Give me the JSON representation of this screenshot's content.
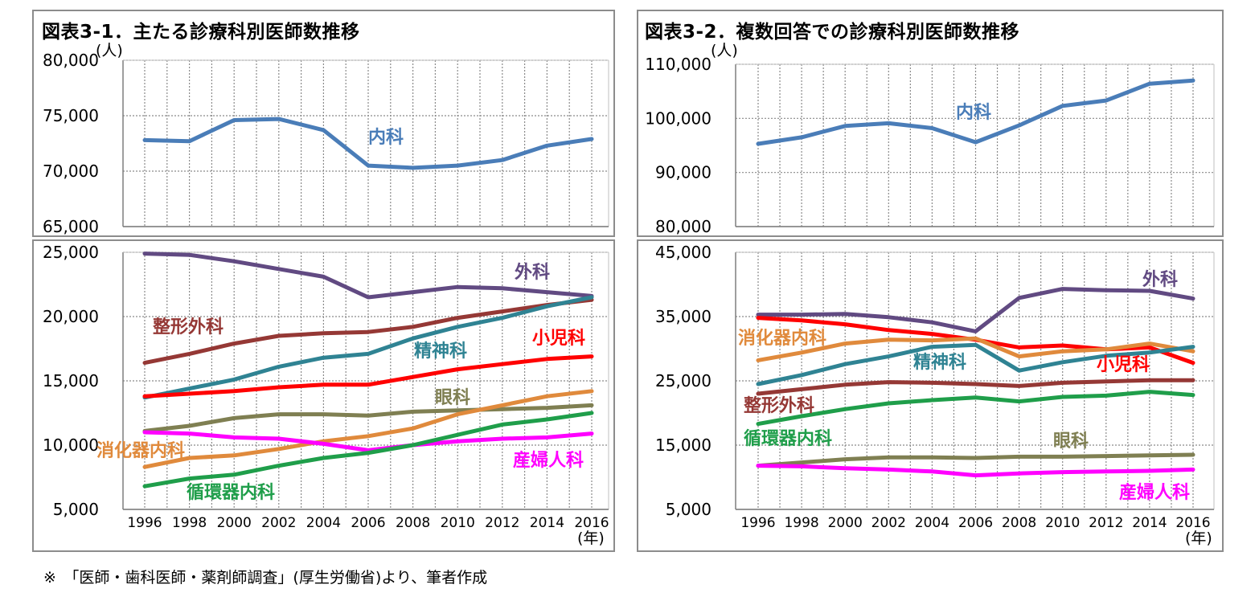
{
  "titles": {
    "left": "図表3-1．主たる診療科別医師数推移",
    "right": "図表3-2．複数回答での診療科別医師数推移"
  },
  "unit_label": "(人)",
  "year_unit_label": "(年)",
  "footnote": "※　「医師・歯科医師・薬剤師調査」(厚生労働省)より、筆者作成",
  "colors": {
    "internal": "#4a7db8",
    "surgery": "#614a82",
    "orthopedics": "#953835",
    "pediatrics": "#ff0000",
    "psychiatry": "#2f8393",
    "ophthalmology": "#7f7f52",
    "gastro": "#e08a3c",
    "cardio": "#1f9e4a",
    "obgyn": "#ff00ff"
  },
  "chart_data": [
    {
      "id": "left-top",
      "type": "line",
      "x": [
        1996,
        1998,
        2000,
        2002,
        2004,
        2006,
        2008,
        2010,
        2012,
        2014,
        2016
      ],
      "xtick_labels": [
        "1996",
        "1998",
        "2000",
        "2002",
        "2004",
        "2006",
        "2008",
        "2010",
        "2012",
        "2014",
        "2016"
      ],
      "ylim": [
        65000,
        80000
      ],
      "ytick_values": [
        65000,
        70000,
        75000,
        80000
      ],
      "ytick_labels": [
        "65,000",
        "70,000",
        "75,000",
        "80,000"
      ],
      "series": [
        {
          "key": "internal",
          "name": "内科",
          "color": "#4a7db8",
          "values": [
            72800,
            72700,
            74600,
            74700,
            73700,
            70500,
            70300,
            70500,
            71000,
            72300,
            72900
          ]
        }
      ]
    },
    {
      "id": "left-bottom",
      "type": "line",
      "x": [
        1996,
        1998,
        2000,
        2002,
        2004,
        2006,
        2008,
        2010,
        2012,
        2014,
        2016
      ],
      "xtick_labels": [
        "1996",
        "1998",
        "2000",
        "2002",
        "2004",
        "2006",
        "2008",
        "2010",
        "2012",
        "2014",
        "2016"
      ],
      "ylim": [
        5000,
        25000
      ],
      "ytick_values": [
        5000,
        10000,
        15000,
        20000,
        25000
      ],
      "ytick_labels": [
        "5,000",
        "10,000",
        "15,000",
        "20,000",
        "25,000"
      ],
      "series": [
        {
          "key": "surgery",
          "name": "外科",
          "color": "#614a82",
          "values": [
            24900,
            24800,
            24300,
            23700,
            23100,
            21500,
            21900,
            22300,
            22200,
            21900,
            21600
          ]
        },
        {
          "key": "orthopedics",
          "name": "整形外科",
          "color": "#953835",
          "values": [
            16400,
            17100,
            17900,
            18500,
            18700,
            18800,
            19200,
            19900,
            20400,
            20900,
            21300
          ]
        },
        {
          "key": "psychiatry",
          "name": "精神科",
          "color": "#2f8393",
          "values": [
            13700,
            14400,
            15100,
            16100,
            16800,
            17100,
            18300,
            19200,
            19900,
            20800,
            21500
          ]
        },
        {
          "key": "pediatrics",
          "name": "小児科",
          "color": "#ff0000",
          "values": [
            13800,
            14000,
            14200,
            14500,
            14700,
            14700,
            15300,
            15900,
            16300,
            16700,
            16900
          ]
        },
        {
          "key": "ophthalmology",
          "name": "眼科",
          "color": "#7f7f52",
          "values": [
            11100,
            11500,
            12100,
            12400,
            12400,
            12300,
            12600,
            12700,
            12800,
            12900,
            13100
          ]
        },
        {
          "key": "gastro",
          "name": "消化器内科",
          "color": "#e08a3c",
          "values": [
            8300,
            9000,
            9200,
            9700,
            10300,
            10700,
            11300,
            12400,
            13100,
            13800,
            14200
          ]
        },
        {
          "key": "obgyn",
          "name": "産婦人科",
          "color": "#ff00ff",
          "values": [
            11000,
            10900,
            10600,
            10500,
            10100,
            9600,
            10000,
            10300,
            10500,
            10600,
            10900
          ]
        },
        {
          "key": "cardio",
          "name": "循環器内科",
          "color": "#1f9e4a",
          "values": [
            6800,
            7400,
            7700,
            8400,
            9000,
            9400,
            10000,
            10800,
            11600,
            12000,
            12500
          ]
        }
      ]
    },
    {
      "id": "right-top",
      "type": "line",
      "x": [
        1996,
        1998,
        2000,
        2002,
        2004,
        2006,
        2008,
        2010,
        2012,
        2014,
        2016
      ],
      "xtick_labels": [
        "1996",
        "1998",
        "2000",
        "2002",
        "2004",
        "2006",
        "2008",
        "2010",
        "2012",
        "2014",
        "2016"
      ],
      "ylim": [
        80000,
        110000
      ],
      "ytick_values": [
        80000,
        90000,
        100000,
        110000
      ],
      "ytick_labels": [
        "80,000",
        "90,000",
        "100,000",
        "110,000"
      ],
      "series": [
        {
          "key": "internal",
          "name": "内科",
          "color": "#4a7db8",
          "values": [
            95300,
            96500,
            98600,
            99100,
            98200,
            95600,
            98700,
            102300,
            103300,
            106400,
            107000
          ]
        }
      ]
    },
    {
      "id": "right-bottom",
      "type": "line",
      "x": [
        1996,
        1998,
        2000,
        2002,
        2004,
        2006,
        2008,
        2010,
        2012,
        2014,
        2016
      ],
      "xtick_labels": [
        "1996",
        "1998",
        "2000",
        "2002",
        "2004",
        "2006",
        "2008",
        "2010",
        "2012",
        "2014",
        "2016"
      ],
      "ylim": [
        5000,
        45000
      ],
      "ytick_values": [
        5000,
        15000,
        25000,
        35000,
        45000
      ],
      "ytick_labels": [
        "5,000",
        "15,000",
        "25,000",
        "35,000",
        "45,000"
      ],
      "series": [
        {
          "key": "surgery",
          "name": "外科",
          "color": "#614a82",
          "values": [
            35300,
            35300,
            35400,
            34900,
            34100,
            32700,
            37900,
            39300,
            39100,
            39000,
            37800
          ]
        },
        {
          "key": "pediatrics",
          "name": "小児科",
          "color": "#ff0000",
          "values": [
            34800,
            34400,
            33800,
            32900,
            32300,
            31400,
            30200,
            30500,
            29900,
            30200,
            27800
          ]
        },
        {
          "key": "gastro",
          "name": "消化器内科",
          "color": "#e08a3c",
          "values": [
            28200,
            29400,
            30800,
            31400,
            31300,
            31600,
            28800,
            29600,
            29900,
            30800,
            29600
          ]
        },
        {
          "key": "psychiatry",
          "name": "精神科",
          "color": "#2f8393",
          "values": [
            24500,
            25900,
            27600,
            28800,
            30300,
            30600,
            26600,
            27900,
            28900,
            29400,
            30300
          ]
        },
        {
          "key": "orthopedics",
          "name": "整形外科",
          "color": "#953835",
          "values": [
            23000,
            23700,
            24400,
            24800,
            24700,
            24500,
            24200,
            24700,
            24900,
            25100,
            25100
          ]
        },
        {
          "key": "cardio",
          "name": "循環器内科",
          "color": "#1f9e4a",
          "values": [
            18300,
            19500,
            20600,
            21500,
            22000,
            22400,
            21800,
            22500,
            22700,
            23300,
            22800
          ]
        },
        {
          "key": "ophthalmology",
          "name": "眼科",
          "color": "#7f7f52",
          "values": [
            11800,
            12300,
            12800,
            13100,
            13100,
            13000,
            13200,
            13200,
            13300,
            13400,
            13500
          ]
        },
        {
          "key": "obgyn",
          "name": "産婦人科",
          "color": "#ff00ff",
          "values": [
            11800,
            11700,
            11400,
            11200,
            10900,
            10300,
            10600,
            10800,
            10900,
            11000,
            11200
          ]
        }
      ]
    }
  ]
}
